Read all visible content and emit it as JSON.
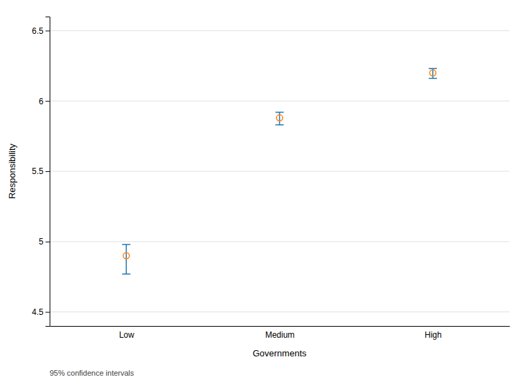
{
  "chart_data": {
    "type": "scatter",
    "categories": [
      "Low",
      "Medium",
      "High"
    ],
    "values": [
      4.9,
      5.88,
      6.2
    ],
    "error_low": [
      0.13,
      0.05,
      0.04
    ],
    "error_high": [
      0.08,
      0.04,
      0.03
    ],
    "xlabel": "Governments",
    "ylabel": "Responsibility",
    "ylim": [
      4.4,
      6.6
    ],
    "yticks": [
      4.5,
      5,
      5.5,
      6,
      6.5
    ],
    "grid": true,
    "marker": "circle",
    "annotation": "95% confidence intervals"
  }
}
